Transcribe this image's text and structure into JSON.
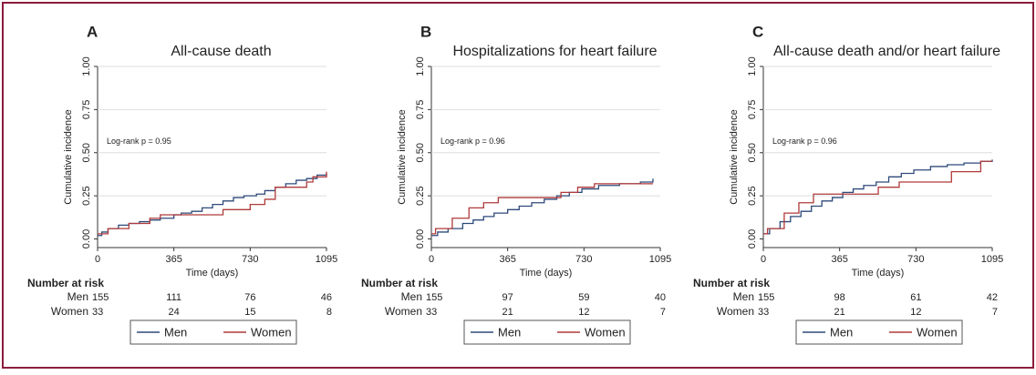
{
  "chart_data": [
    {
      "type": "step",
      "panel": "A",
      "title": "All-cause death",
      "y_label": "Cumulative incidence",
      "x_label": "Time (days)",
      "annotation": "Log-rank p = 0.95",
      "xlim": [
        0,
        1095
      ],
      "ylim": [
        -0.05,
        1.0
      ],
      "xticks": [
        0,
        365,
        730,
        1095
      ],
      "yticks": [
        {
          "value": 0,
          "label": "0.00"
        },
        {
          "value": 0.25,
          "label": "0.25"
        },
        {
          "value": 0.5,
          "label": "0.50"
        },
        {
          "value": 0.75,
          "label": "0.75"
        },
        {
          "value": 1,
          "label": "1.00"
        }
      ],
      "grid": true,
      "series": [
        {
          "name": "Men",
          "color": "#2e4a7a",
          "x": [
            0,
            20,
            50,
            100,
            150,
            200,
            250,
            300,
            365,
            400,
            450,
            500,
            550,
            600,
            650,
            700,
            760,
            800,
            850,
            900,
            950,
            1000,
            1050,
            1095
          ],
          "values": [
            0.02,
            0.04,
            0.06,
            0.08,
            0.09,
            0.1,
            0.11,
            0.12,
            0.14,
            0.15,
            0.16,
            0.18,
            0.2,
            0.22,
            0.24,
            0.25,
            0.26,
            0.28,
            0.3,
            0.32,
            0.34,
            0.35,
            0.37,
            0.38
          ]
        },
        {
          "name": "Women",
          "color": "#b03a3a",
          "x": [
            0,
            50,
            150,
            250,
            300,
            600,
            730,
            800,
            850,
            1000,
            1030,
            1095
          ],
          "values": [
            0.03,
            0.06,
            0.09,
            0.12,
            0.14,
            0.17,
            0.2,
            0.23,
            0.3,
            0.33,
            0.36,
            0.39
          ]
        }
      ],
      "risk_table": {
        "title": "Number at risk",
        "rows": [
          {
            "name": "Men",
            "values": [
              155,
              111,
              76,
              46
            ]
          },
          {
            "name": "Women",
            "values": [
              33,
              24,
              15,
              8
            ]
          }
        ]
      }
    },
    {
      "type": "step",
      "panel": "B",
      "title": "Hospitalizations for heart failure",
      "y_label": "Cumulative incidence",
      "x_label": "Time (days)",
      "annotation": "Log-rank p = 0.96",
      "xlim": [
        0,
        1095
      ],
      "ylim": [
        -0.05,
        1.0
      ],
      "xticks": [
        0,
        365,
        730,
        1095
      ],
      "yticks": [
        {
          "value": 0,
          "label": "0.00"
        },
        {
          "value": 0.25,
          "label": "0.25"
        },
        {
          "value": 0.5,
          "label": "0.50"
        },
        {
          "value": 0.75,
          "label": "0.75"
        },
        {
          "value": 1,
          "label": "1.00"
        }
      ],
      "grid": true,
      "series": [
        {
          "name": "Men",
          "color": "#2e4a7a",
          "x": [
            0,
            30,
            80,
            150,
            200,
            250,
            300,
            365,
            420,
            480,
            540,
            600,
            660,
            720,
            800,
            900,
            1000,
            1060
          ],
          "values": [
            0.02,
            0.04,
            0.06,
            0.09,
            0.11,
            0.13,
            0.15,
            0.17,
            0.19,
            0.21,
            0.23,
            0.25,
            0.27,
            0.29,
            0.31,
            0.32,
            0.33,
            0.35
          ]
        },
        {
          "name": "Women",
          "color": "#b03a3a",
          "x": [
            0,
            20,
            100,
            180,
            250,
            320,
            600,
            620,
            700,
            780,
            1060
          ],
          "values": [
            0.03,
            0.06,
            0.12,
            0.18,
            0.21,
            0.24,
            0.24,
            0.27,
            0.3,
            0.32,
            0.32
          ]
        }
      ],
      "risk_table": {
        "title": "Number at risk",
        "rows": [
          {
            "name": "Men",
            "values": [
              155,
              97,
              59,
              40
            ]
          },
          {
            "name": "Women",
            "values": [
              33,
              21,
              12,
              7
            ]
          }
        ]
      }
    },
    {
      "type": "step",
      "panel": "C",
      "title": "All-cause death and/or heart failure",
      "y_label": "Cumulative incidence",
      "x_label": "Time (days)",
      "annotation": "Log-rank p = 0.96",
      "xlim": [
        0,
        1095
      ],
      "ylim": [
        -0.05,
        1.0
      ],
      "xticks": [
        0,
        365,
        730,
        1095
      ],
      "yticks": [
        {
          "value": 0,
          "label": "0.00"
        },
        {
          "value": 0.25,
          "label": "0.25"
        },
        {
          "value": 0.5,
          "label": "0.50"
        },
        {
          "value": 0.75,
          "label": "0.75"
        },
        {
          "value": 1,
          "label": "1.00"
        }
      ],
      "grid": true,
      "series": [
        {
          "name": "Men",
          "color": "#2e4a7a",
          "x": [
            0,
            30,
            80,
            130,
            180,
            230,
            280,
            330,
            380,
            430,
            480,
            540,
            600,
            660,
            720,
            800,
            880,
            960,
            1040,
            1095
          ],
          "values": [
            0.03,
            0.06,
            0.1,
            0.13,
            0.16,
            0.19,
            0.22,
            0.24,
            0.27,
            0.29,
            0.31,
            0.33,
            0.36,
            0.38,
            0.4,
            0.42,
            0.43,
            0.44,
            0.45,
            0.46
          ]
        },
        {
          "name": "Women",
          "color": "#b03a3a",
          "x": [
            0,
            20,
            100,
            170,
            240,
            380,
            550,
            650,
            900,
            1040,
            1095
          ],
          "values": [
            0.03,
            0.06,
            0.15,
            0.21,
            0.26,
            0.26,
            0.3,
            0.33,
            0.39,
            0.45,
            0.45
          ]
        }
      ],
      "risk_table": {
        "title": "Number at risk",
        "rows": [
          {
            "name": "Men",
            "values": [
              155,
              98,
              61,
              42
            ]
          },
          {
            "name": "Women",
            "values": [
              33,
              21,
              12,
              7
            ]
          }
        ]
      }
    }
  ]
}
